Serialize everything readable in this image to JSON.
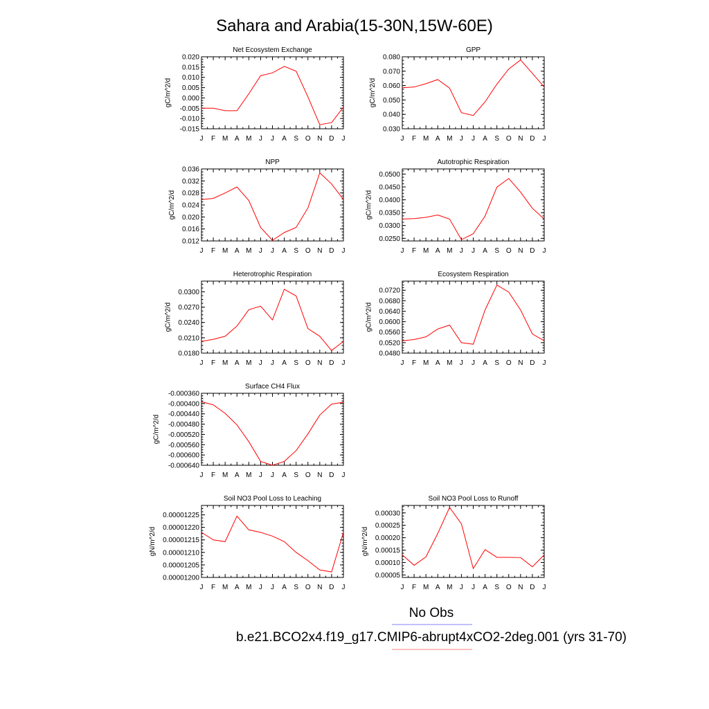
{
  "figure": {
    "title": "Sahara and Arabia(15-30N,15W-60E)",
    "legend": {
      "placement": "bottom-right",
      "entries": [
        {
          "label": "No Obs",
          "color": "#8080ff"
        },
        {
          "label": "b.e21.BCO2x4.f19_g17.CMIP6-abrupt4xCO2-2deg.001 (yrs 31-70)",
          "color": "#ff8080"
        }
      ]
    },
    "line_color": "#ff0000"
  },
  "chart_data": [
    {
      "type": "line",
      "title": "Net Ecosystem Exchange",
      "ylabel": "gC/m^2/d",
      "ylim": [
        -0.015,
        0.02
      ],
      "yticks": [
        "-0.015",
        "-0.010",
        "-0.005",
        "0.000",
        "0.005",
        "0.010",
        "0.015",
        "0.020"
      ],
      "ytick_values": [
        -0.015,
        -0.01,
        -0.005,
        0,
        0.005,
        0.01,
        0.015,
        0.02
      ],
      "categories": [
        "J",
        "F",
        "M",
        "A",
        "M",
        "J",
        "J",
        "A",
        "S",
        "O",
        "N",
        "D",
        "J"
      ],
      "values": [
        -0.005,
        -0.005,
        -0.0062,
        -0.0062,
        0.002,
        0.0108,
        0.0122,
        0.0153,
        0.013,
        0.0005,
        -0.013,
        -0.012,
        -0.0045
      ]
    },
    {
      "type": "line",
      "title": "GPP",
      "ylabel": "gC/m^2/d",
      "ylim": [
        0.03,
        0.08
      ],
      "yticks": [
        "0.030",
        "0.040",
        "0.050",
        "0.060",
        "0.070",
        "0.080"
      ],
      "ytick_values": [
        0.03,
        0.04,
        0.05,
        0.06,
        0.07,
        0.08
      ],
      "categories": [
        "J",
        "F",
        "M",
        "A",
        "M",
        "J",
        "J",
        "A",
        "S",
        "O",
        "N",
        "D",
        "J"
      ],
      "values": [
        0.0585,
        0.059,
        0.0613,
        0.0642,
        0.0582,
        0.0412,
        0.0392,
        0.0487,
        0.061,
        0.0715,
        0.0778,
        0.0685,
        0.059
      ]
    },
    {
      "type": "line",
      "title": "NPP",
      "ylabel": "gC/m^2/d",
      "ylim": [
        0.012,
        0.036
      ],
      "yticks": [
        "0.012",
        "0.016",
        "0.020",
        "0.024",
        "0.028",
        "0.032",
        "0.036"
      ],
      "ytick_values": [
        0.012,
        0.016,
        0.02,
        0.024,
        0.028,
        0.032,
        0.036
      ],
      "categories": [
        "J",
        "F",
        "M",
        "A",
        "M",
        "J",
        "J",
        "A",
        "S",
        "O",
        "N",
        "D",
        "J"
      ],
      "values": [
        0.0258,
        0.0262,
        0.028,
        0.03,
        0.0255,
        0.0165,
        0.0122,
        0.0148,
        0.0165,
        0.023,
        0.0347,
        0.031,
        0.0258
      ]
    },
    {
      "type": "line",
      "title": "Autotrophic Respiration",
      "ylabel": "gC/m^2/d",
      "ylim": [
        0.024,
        0.052
      ],
      "yticks": [
        "0.0250",
        "0.0300",
        "0.0350",
        "0.0400",
        "0.0450",
        "0.0500"
      ],
      "ytick_values": [
        0.025,
        0.03,
        0.035,
        0.04,
        0.045,
        0.05
      ],
      "categories": [
        "J",
        "F",
        "M",
        "A",
        "M",
        "J",
        "J",
        "A",
        "S",
        "O",
        "N",
        "D",
        "J"
      ],
      "values": [
        0.0325,
        0.0327,
        0.0332,
        0.0341,
        0.0325,
        0.0245,
        0.0268,
        0.0337,
        0.0449,
        0.0483,
        0.043,
        0.0367,
        0.0325
      ]
    },
    {
      "type": "line",
      "title": "Heterotrophic Respiration",
      "ylabel": "gC/m^2/d",
      "ylim": [
        0.018,
        0.0321
      ],
      "yticks": [
        "0.0180",
        "0.0210",
        "0.0240",
        "0.0270",
        "0.0300"
      ],
      "ytick_values": [
        0.018,
        0.021,
        0.024,
        0.027,
        0.03
      ],
      "categories": [
        "J",
        "F",
        "M",
        "A",
        "M",
        "J",
        "J",
        "A",
        "S",
        "O",
        "N",
        "D",
        "J"
      ],
      "values": [
        0.0203,
        0.0207,
        0.0213,
        0.0233,
        0.0265,
        0.0272,
        0.0245,
        0.0305,
        0.0292,
        0.0228,
        0.0213,
        0.0185,
        0.0203
      ]
    },
    {
      "type": "line",
      "title": "Ecosystem Respiration",
      "ylabel": "gC/m^2/d",
      "ylim": [
        0.048,
        0.0755
      ],
      "yticks": [
        "0.0480",
        "0.0520",
        "0.0560",
        "0.0600",
        "0.0640",
        "0.0680",
        "0.0720"
      ],
      "ytick_values": [
        0.048,
        0.052,
        0.056,
        0.06,
        0.064,
        0.068,
        0.072
      ],
      "categories": [
        "J",
        "F",
        "M",
        "A",
        "M",
        "J",
        "J",
        "A",
        "S",
        "O",
        "N",
        "D",
        "J"
      ],
      "values": [
        0.0527,
        0.0532,
        0.0542,
        0.0572,
        0.0587,
        0.052,
        0.0514,
        0.0645,
        0.074,
        0.0713,
        0.0645,
        0.0553,
        0.0527
      ]
    },
    {
      "type": "line",
      "title": "Surface CH4 Flux",
      "ylabel": "gC/m^2/d",
      "ylim": [
        -0.00064,
        -0.00036
      ],
      "yticks": [
        "-0.000640",
        "-0.000600",
        "-0.000560",
        "-0.000520",
        "-0.000480",
        "-0.000440",
        "-0.000400",
        "-0.000360"
      ],
      "ytick_values": [
        -0.00064,
        -0.0006,
        -0.00056,
        -0.00052,
        -0.00048,
        -0.00044,
        -0.0004,
        -0.00036
      ],
      "categories": [
        "J",
        "F",
        "M",
        "A",
        "M",
        "J",
        "J",
        "A",
        "S",
        "O",
        "N",
        "D",
        "J"
      ],
      "values": [
        -0.000393,
        -0.000405,
        -0.000438,
        -0.000483,
        -0.000548,
        -0.000625,
        -0.00064,
        -0.000625,
        -0.000583,
        -0.000518,
        -0.000445,
        -0.000402,
        -0.000395
      ]
    },
    {
      "type": "line",
      "title": "Soil NO3 Pool Loss to Leaching",
      "ylabel": "gN/m^2/d",
      "ylim": [
        1.2e-05,
        1.22875e-05
      ],
      "yticks": [
        "0.00001200",
        "0.00001205",
        "0.00001210",
        "0.00001215",
        "0.00001220",
        "0.00001225"
      ],
      "ytick_values": [
        1.2e-05,
        1.205e-05,
        1.21e-05,
        1.215e-05,
        1.22e-05,
        1.225e-05
      ],
      "categories": [
        "J",
        "F",
        "M",
        "A",
        "M",
        "J",
        "J",
        "A",
        "S",
        "O",
        "N",
        "D",
        "J"
      ],
      "values": [
        1.218e-05,
        1.215e-05,
        1.2143e-05,
        1.2245e-05,
        1.219e-05,
        1.218e-05,
        1.2165e-05,
        1.2143e-05,
        1.21e-05,
        1.2067e-05,
        1.203e-05,
        1.2022e-05,
        1.218e-05
      ]
    },
    {
      "type": "line",
      "title": "Soil NO3 Pool Loss to Runoff",
      "ylabel": "gN/m^2/d",
      "ylim": [
        4e-05,
        0.00033
      ],
      "yticks": [
        "0.00005",
        "0.00010",
        "0.00015",
        "0.00020",
        "0.00025",
        "0.00030"
      ],
      "ytick_values": [
        5e-05,
        0.0001,
        0.00015,
        0.0002,
        0.00025,
        0.0003
      ],
      "categories": [
        "J",
        "F",
        "M",
        "A",
        "M",
        "J",
        "J",
        "A",
        "S",
        "O",
        "N",
        "D",
        "J"
      ],
      "values": [
        0.000131,
        8.9e-05,
        0.000123,
        0.000217,
        0.000322,
        0.000256,
        7.6e-05,
        0.000152,
        0.000121,
        0.000121,
        0.00012,
        8.3e-05,
        0.000131
      ]
    }
  ]
}
